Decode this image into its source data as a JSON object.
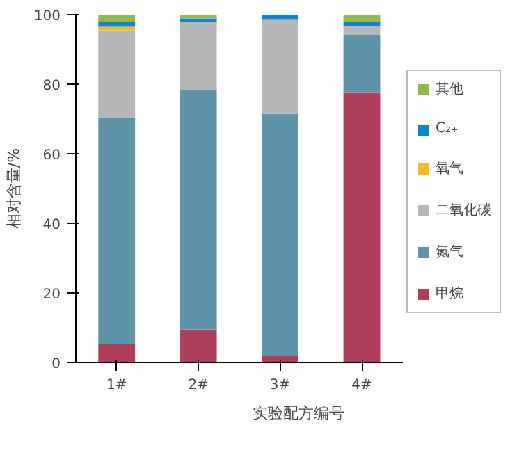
{
  "chart_data": {
    "type": "bar",
    "stacked": true,
    "xlabel": "实验配方编号",
    "ylabel": "相对含量/%",
    "categories": [
      "1#",
      "2#",
      "3#",
      "4#"
    ],
    "series": [
      {
        "name": "甲烷",
        "color": "#ae3f5a",
        "values": [
          5.3,
          9.5,
          2.0,
          77.7
        ]
      },
      {
        "name": "氮气",
        "color": "#5f93aa",
        "values": [
          65.2,
          68.8,
          69.5,
          16.3
        ]
      },
      {
        "name": "二氧化碳",
        "color": "#b8b7b8",
        "values": [
          25.0,
          19.5,
          27.0,
          2.8
        ]
      },
      {
        "name": "氧气",
        "color": "#f7bb22",
        "values": [
          1.0,
          0,
          0,
          0
        ]
      },
      {
        "name": "C₂₊",
        "color": "#0d86cf",
        "values": [
          1.5,
          1.1,
          1.5,
          1.0
        ]
      },
      {
        "name": "其他",
        "color": "#8fbb4c",
        "values": [
          2.0,
          1.1,
          0,
          2.2
        ]
      }
    ],
    "ylim": [
      0,
      100
    ],
    "yticks": [
      0,
      20,
      40,
      60,
      80,
      100
    ],
    "grid": false,
    "legend": "right"
  }
}
